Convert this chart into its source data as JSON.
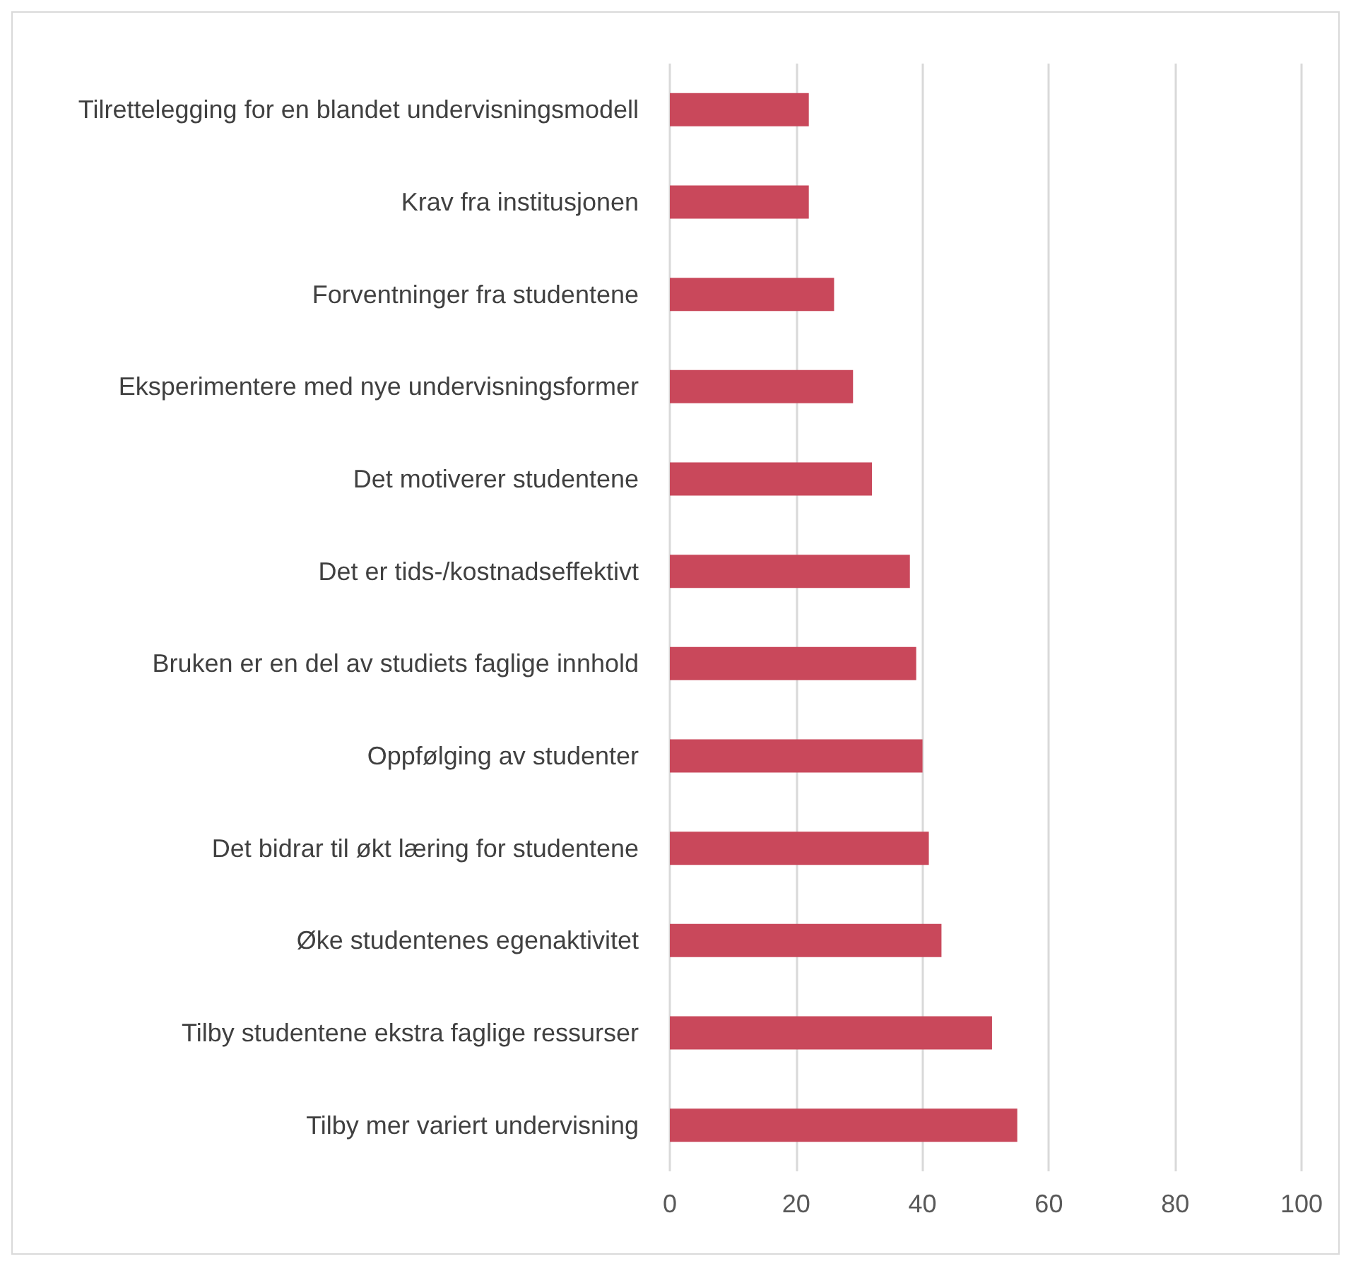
{
  "chart_data": {
    "type": "bar",
    "orientation": "horizontal",
    "categories": [
      "Tilrettelegging for en blandet undervisningsmodell",
      "Krav fra institusjonen",
      "Forventninger fra studentene",
      "Eksperimentere med nye undervisningsformer",
      "Det motiverer studentene",
      "Det er tids-/kostnadseffektivt",
      "Bruken er en del av studiets faglige innhold",
      "Oppfølging av studenter",
      "Det bidrar til økt læring for studentene",
      "Øke studentenes egenaktivitet",
      "Tilby studentene ekstra faglige ressurser",
      "Tilby mer variert undervisning"
    ],
    "values": [
      22,
      22,
      26,
      29,
      32,
      38,
      39,
      40,
      41,
      43,
      51,
      55
    ],
    "color": "#c9485b",
    "xlim": [
      0,
      100
    ],
    "xticks": [
      0,
      20,
      40,
      60,
      80,
      100
    ],
    "grid": "x"
  }
}
